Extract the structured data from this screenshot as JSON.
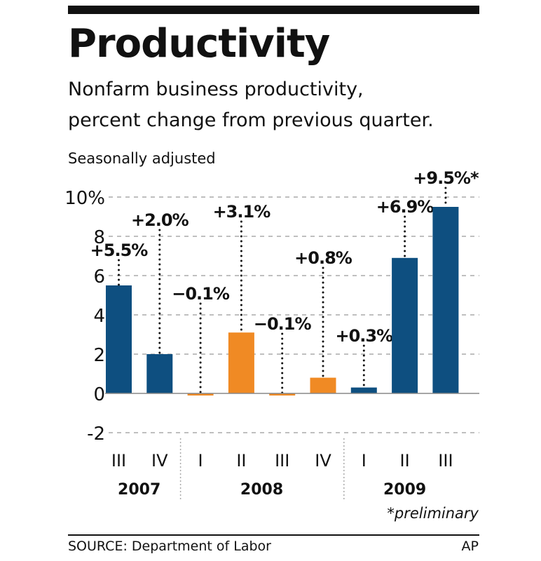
{
  "title": "Productivity",
  "subtitle": [
    "Nonfarm business productivity,",
    "percent change from previous quarter."
  ],
  "note": "Seasonally adjusted",
  "footnote": "*preliminary",
  "source": "SOURCE: Department of Labor",
  "credit": "AP",
  "colors": {
    "blue": "#0e4f80",
    "orange": "#f08a24"
  },
  "chart_data": {
    "type": "bar",
    "ylim": [
      -2,
      10
    ],
    "yticks": [
      -2,
      0,
      2,
      4,
      6,
      8,
      10
    ],
    "ytick_labels": [
      "-2",
      "0",
      "2",
      "4",
      "6",
      "8",
      "10%"
    ],
    "categories": [
      "III",
      "IV",
      "I",
      "II",
      "III",
      "IV",
      "I",
      "II",
      "III"
    ],
    "years": [
      {
        "label": "2007",
        "quarters": 2
      },
      {
        "label": "2008",
        "quarters": 4
      },
      {
        "label": "2009",
        "quarters": 3
      }
    ],
    "values": [
      5.5,
      2.0,
      -0.1,
      3.1,
      -0.1,
      0.8,
      0.3,
      6.9,
      9.5
    ],
    "data_labels": [
      "+5.5%",
      "+2.0%",
      "−0.1%",
      "+3.1%",
      "−0.1%",
      "+0.8%",
      "+0.3%",
      "+6.9%",
      "+9.5%*"
    ],
    "bar_colors": [
      "blue",
      "blue",
      "orange",
      "orange",
      "orange",
      "orange",
      "blue",
      "blue",
      "blue"
    ],
    "grid": true
  }
}
